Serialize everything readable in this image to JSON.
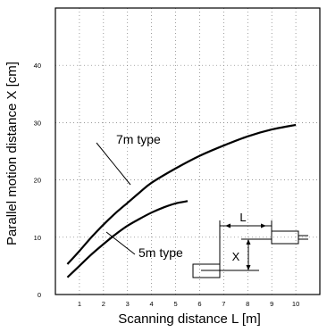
{
  "chart_data": {
    "type": "line",
    "title": "",
    "xlabel": "Scanning distance L [m]",
    "ylabel": "Parallel motion distance X [cm]",
    "xlim": [
      0,
      11
    ],
    "ylim": [
      0,
      50
    ],
    "xticks": [
      1,
      2,
      3,
      4,
      5,
      6,
      7,
      8,
      9,
      10
    ],
    "yticks": [
      0,
      10,
      20,
      30,
      40
    ],
    "grid": "dotted",
    "series": [
      {
        "name": "7m type",
        "x": [
          0.5,
          1,
          1.5,
          2,
          2.5,
          3,
          3.5,
          4,
          5,
          6,
          7,
          8,
          9,
          10
        ],
        "y": [
          5.3,
          7.6,
          10.0,
          12.2,
          14.2,
          16.0,
          17.8,
          19.5,
          22.0,
          24.2,
          26.0,
          27.6,
          28.8,
          29.6
        ]
      },
      {
        "name": "5m type",
        "x": [
          0.5,
          1,
          1.5,
          2,
          2.5,
          3,
          3.5,
          4,
          4.5,
          5,
          5.5
        ],
        "y": [
          3.0,
          5.0,
          7.0,
          8.8,
          10.5,
          12.0,
          13.2,
          14.3,
          15.2,
          15.9,
          16.3
        ]
      }
    ],
    "annotations": [
      {
        "text": "7m type",
        "target": "7m type"
      },
      {
        "text": "5m type",
        "target": "5m type"
      }
    ],
    "inset_diagram": {
      "labels": [
        "L",
        "X"
      ]
    }
  }
}
